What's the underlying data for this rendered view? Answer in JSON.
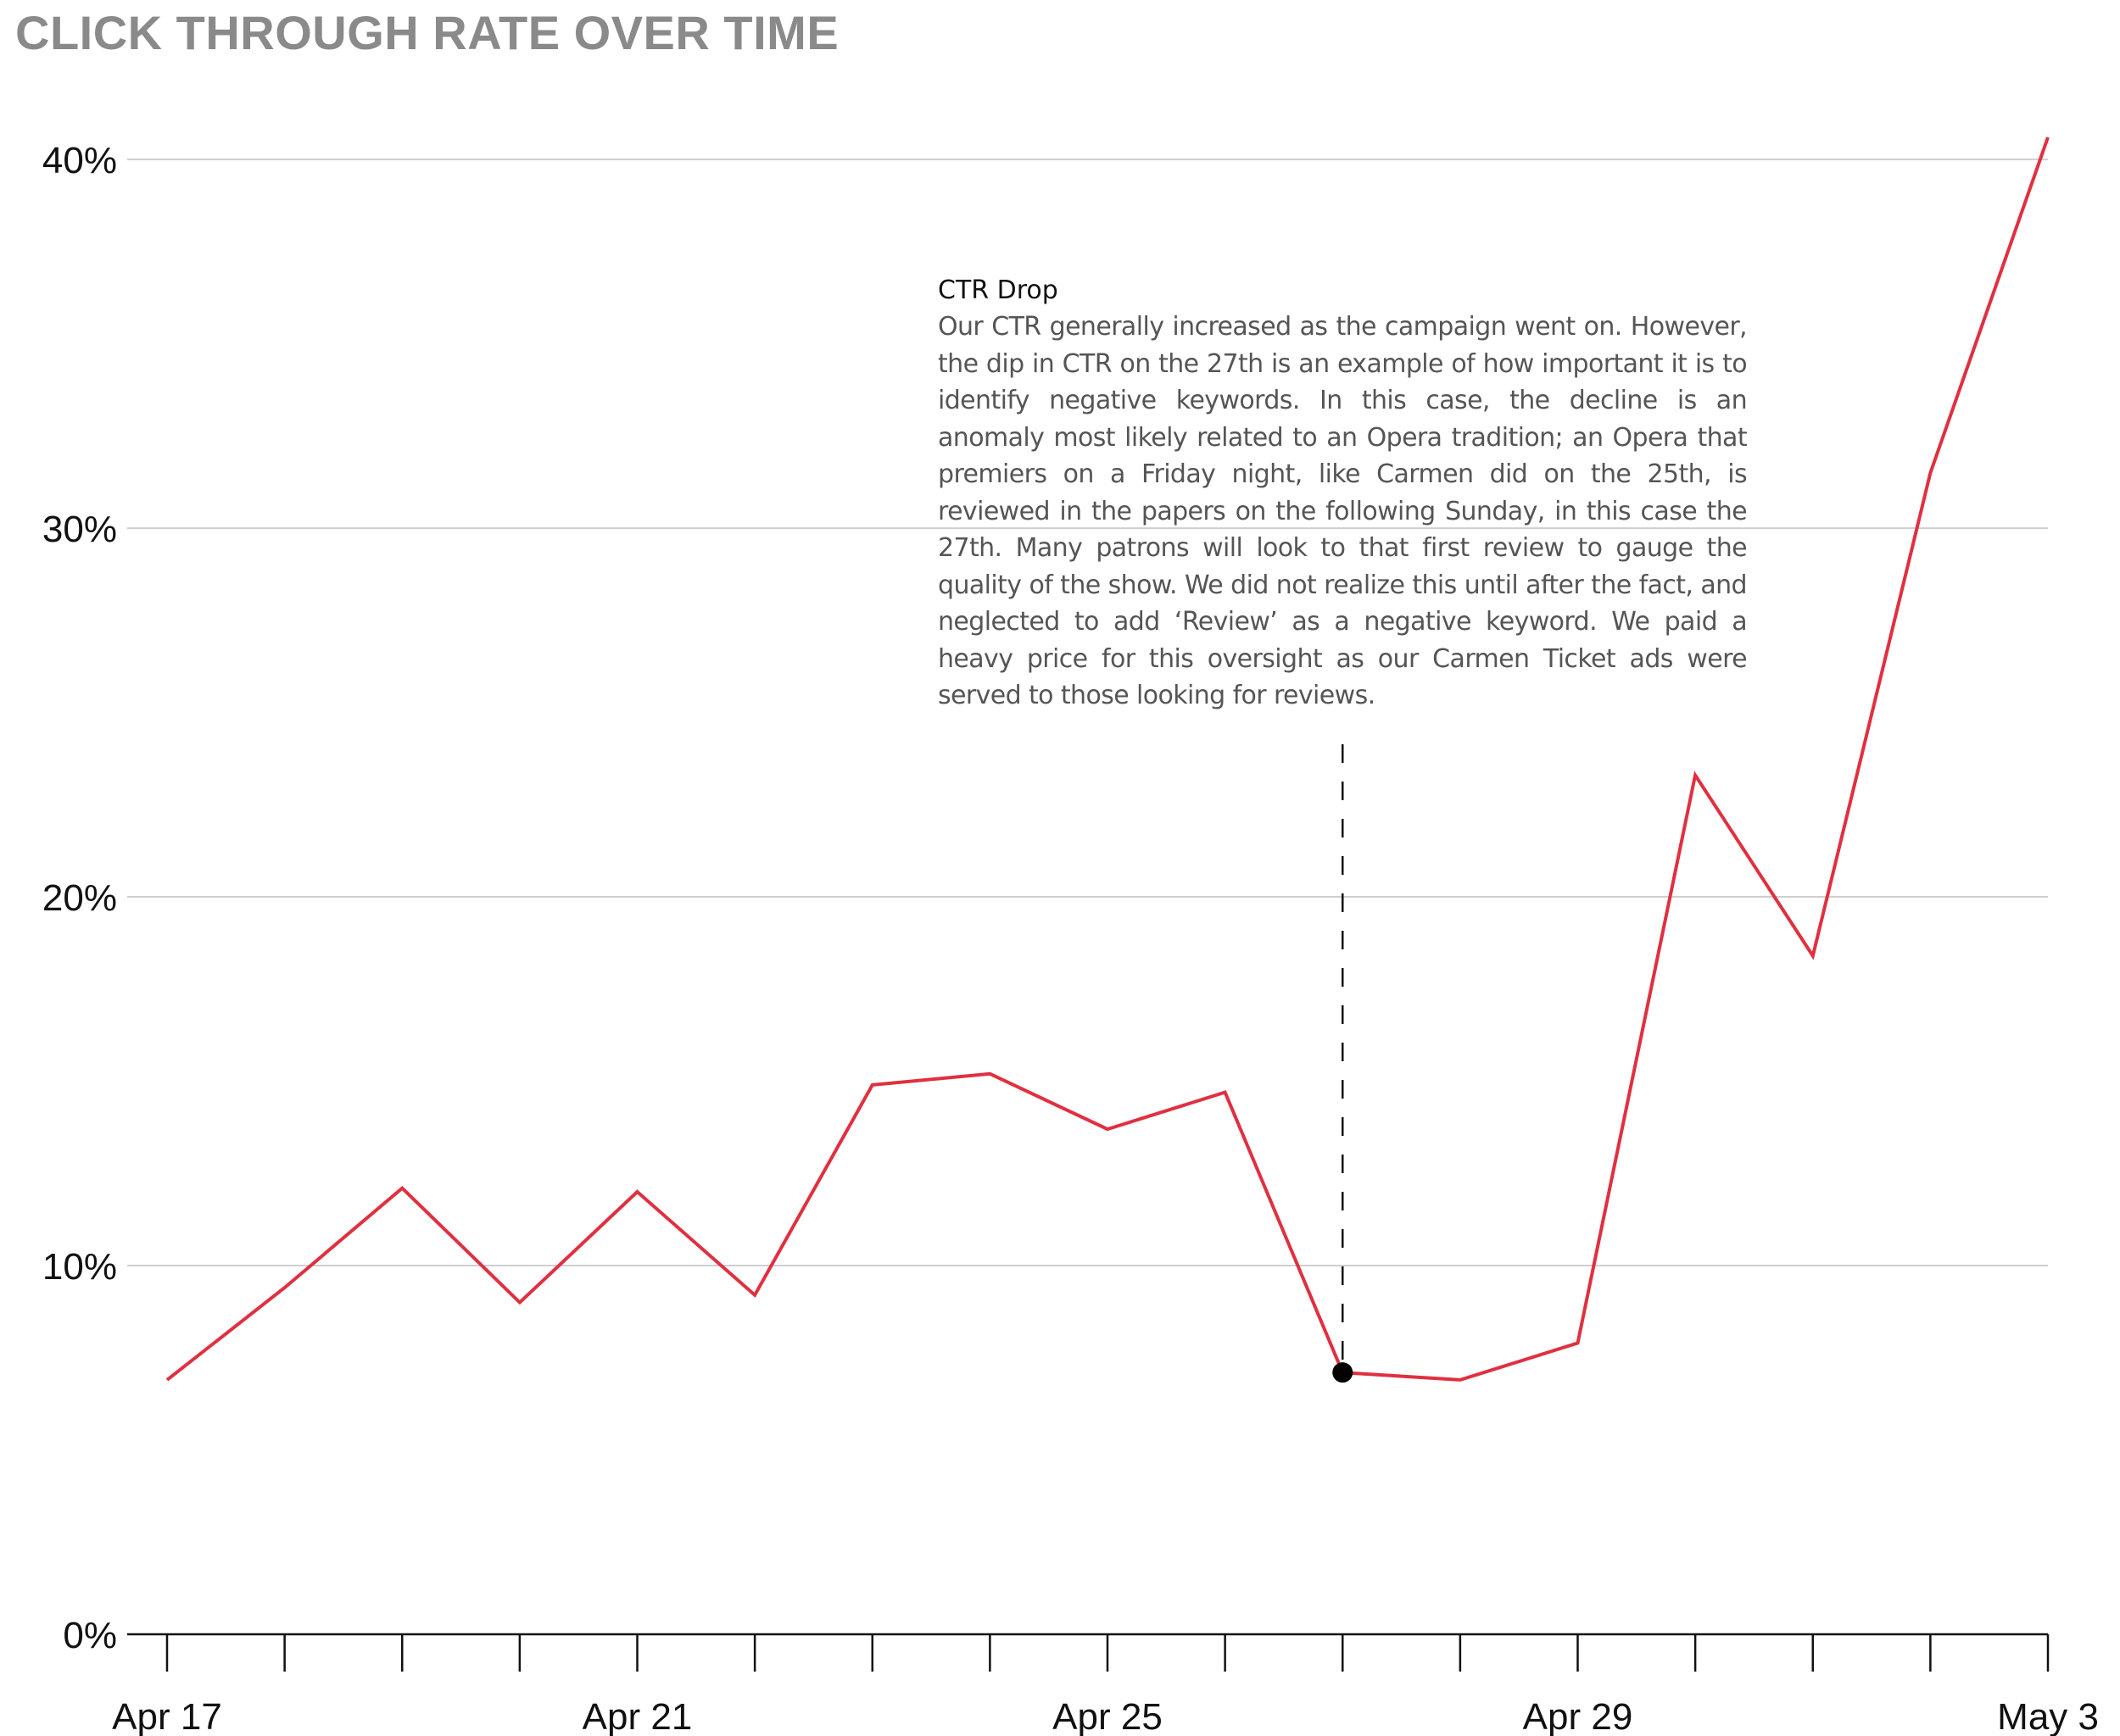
{
  "chart_data": {
    "type": "line",
    "title": "CLICK THROUGH RATE OVER TIME",
    "x": [
      "Apr 17",
      "Apr 18",
      "Apr 19",
      "Apr 20",
      "Apr 21",
      "Apr 22",
      "Apr 23",
      "Apr 24",
      "Apr 25",
      "Apr 26",
      "Apr 27",
      "Apr 28",
      "Apr 29",
      "Apr 30",
      "May 1",
      "May 2",
      "May 3"
    ],
    "x_tick_labels": [
      "Apr 17",
      "Apr 21",
      "Apr 25",
      "Apr 29",
      "May 3"
    ],
    "series": [
      {
        "values": [
          6.9,
          9.4,
          12.1,
          9.0,
          12.0,
          9.2,
          14.9,
          15.2,
          13.7,
          14.7,
          7.1,
          6.9,
          7.9,
          23.3,
          18.4,
          31.5,
          40.6
        ],
        "color": "#e03040"
      }
    ],
    "y_tick_labels": [
      "0%",
      "10%",
      "20%",
      "30%",
      "40%"
    ],
    "ylim": [
      0,
      40.6
    ],
    "grid": true,
    "annotation": {
      "x": "Apr 27",
      "y": 7.1,
      "title": "CTR Drop",
      "text": "Our CTR generally increased as the campaign went on. However, the dip in CTR on the 27th is an example of how important it is to identify negative keywords. In this case, the decline is an anomaly most likely related to an Opera tradition; an Opera that premiers on a Friday night, like Carmen did on the 25th, is reviewed in the papers on the following Sunday, in this case the 27th. Many patrons will look to that first review to gauge the quality of the show. We did not realize this until after the fact, and neglected to add ‘Review’ as a negative keyword. We paid a heavy price for this oversight as our Carmen Ticket ads were served to those looking for reviews."
    }
  }
}
